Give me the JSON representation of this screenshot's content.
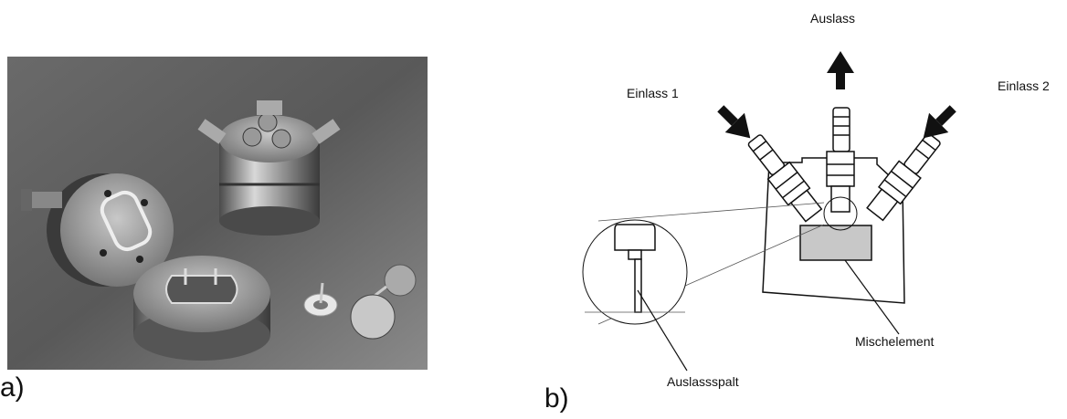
{
  "figure": {
    "panel_a": {
      "label": "a)"
    },
    "panel_b": {
      "label": "b)",
      "labels": {
        "outlet": "Auslass",
        "inlet1": "Einlass 1",
        "inlet2": "Einlass 2",
        "mixing_element": "Mischelement",
        "outlet_gap": "Auslassspalt"
      }
    }
  }
}
